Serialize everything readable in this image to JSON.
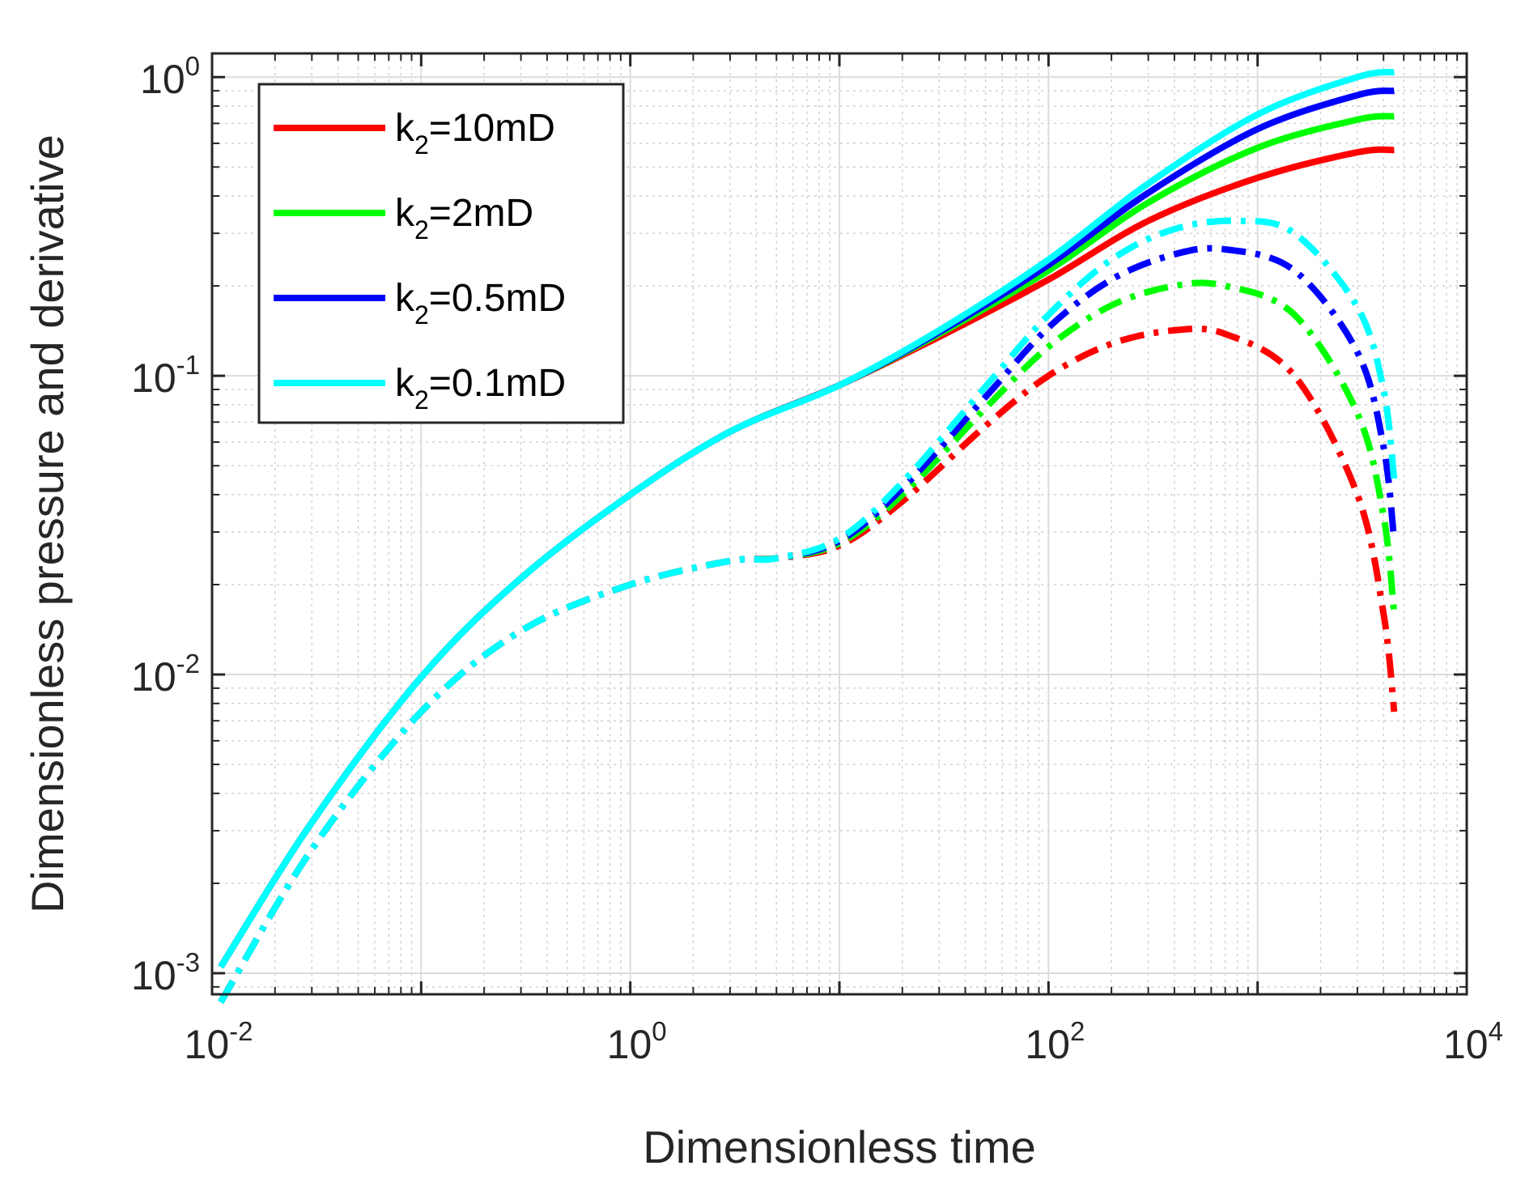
{
  "chart_data": {
    "type": "line",
    "xscale": "log",
    "yscale": "log",
    "xlabel": "Dimensionless time",
    "ylabel": "Dimensionless pressure and derivative",
    "xlim": [
      0.01,
      10000
    ],
    "ylim": [
      0.00085,
      1.2
    ],
    "x_ticks": [
      {
        "value": 0.01,
        "base": "10",
        "exp": "-2"
      },
      {
        "value": 1,
        "base": "10",
        "exp": "0"
      },
      {
        "value": 100,
        "base": "10",
        "exp": "2"
      },
      {
        "value": 10000,
        "base": "10",
        "exp": "4"
      }
    ],
    "y_ticks": [
      {
        "value": 0.001,
        "base": "10",
        "exp": "-3"
      },
      {
        "value": 0.01,
        "base": "10",
        "exp": "-2"
      },
      {
        "value": 0.1,
        "base": "10",
        "exp": "-1"
      },
      {
        "value": 1,
        "base": "10",
        "exp": "0"
      }
    ],
    "grid": true,
    "legend_position": "top-left",
    "series": [
      {
        "name": "k2=10mD",
        "legend_main": "k",
        "legend_sub": "2",
        "legend_rest": "=10mD",
        "color": "#ff0000",
        "pressure": {
          "x": [
            0.011,
            0.03,
            0.1,
            0.3,
            1,
            3,
            10,
            30,
            100,
            300,
            1000,
            3000,
            4500
          ],
          "y": [
            0.00105,
            0.0032,
            0.0098,
            0.021,
            0.04,
            0.065,
            0.093,
            0.135,
            0.21,
            0.33,
            0.46,
            0.56,
            0.57
          ]
        },
        "derivative": {
          "x": [
            0.011,
            0.03,
            0.1,
            0.3,
            1,
            3,
            5,
            10,
            20,
            50,
            100,
            200,
            400,
            700,
            1500,
            3000,
            4000,
            4500
          ],
          "y": [
            0.0008,
            0.0026,
            0.0075,
            0.014,
            0.02,
            0.024,
            0.0245,
            0.027,
            0.038,
            0.068,
            0.1,
            0.128,
            0.142,
            0.138,
            0.1,
            0.04,
            0.016,
            0.0075
          ]
        }
      },
      {
        "name": "k2=2mD",
        "legend_main": "k",
        "legend_sub": "2",
        "legend_rest": "=2mD",
        "color": "#00ff00",
        "pressure": {
          "x": [
            0.011,
            0.03,
            0.1,
            0.3,
            1,
            3,
            10,
            30,
            100,
            300,
            1000,
            3000,
            4500
          ],
          "y": [
            0.00105,
            0.0032,
            0.0098,
            0.021,
            0.04,
            0.065,
            0.093,
            0.138,
            0.225,
            0.38,
            0.58,
            0.72,
            0.74
          ]
        },
        "derivative": {
          "x": [
            0.011,
            0.03,
            0.1,
            0.3,
            1,
            3,
            5,
            10,
            20,
            50,
            100,
            200,
            400,
            700,
            1500,
            3000,
            4000,
            4500
          ],
          "y": [
            0.0008,
            0.0026,
            0.0075,
            0.014,
            0.02,
            0.024,
            0.0245,
            0.0275,
            0.04,
            0.078,
            0.125,
            0.172,
            0.2,
            0.2,
            0.16,
            0.075,
            0.034,
            0.016
          ]
        }
      },
      {
        "name": "k2=0.5mD",
        "legend_main": "k",
        "legend_sub": "2",
        "legend_rest": "=0.5mD",
        "color": "#0000ff",
        "pressure": {
          "x": [
            0.011,
            0.03,
            0.1,
            0.3,
            1,
            3,
            10,
            30,
            100,
            300,
            1000,
            3000,
            4500
          ],
          "y": [
            0.00105,
            0.0032,
            0.0098,
            0.021,
            0.04,
            0.065,
            0.093,
            0.14,
            0.235,
            0.41,
            0.67,
            0.87,
            0.9
          ]
        },
        "derivative": {
          "x": [
            0.011,
            0.03,
            0.1,
            0.3,
            1,
            3,
            5,
            10,
            20,
            50,
            100,
            200,
            400,
            700,
            1500,
            3000,
            4000,
            4500
          ],
          "y": [
            0.0008,
            0.0026,
            0.0075,
            0.014,
            0.02,
            0.024,
            0.0245,
            0.028,
            0.042,
            0.085,
            0.145,
            0.21,
            0.255,
            0.265,
            0.225,
            0.12,
            0.058,
            0.028
          ]
        }
      },
      {
        "name": "k2=0.1mD",
        "legend_main": "k",
        "legend_sub": "2",
        "legend_rest": "=0.1mD",
        "color": "#00ffff",
        "pressure": {
          "x": [
            0.011,
            0.03,
            0.1,
            0.3,
            1,
            3,
            10,
            30,
            100,
            300,
            1000,
            3000,
            4500
          ],
          "y": [
            0.00105,
            0.0032,
            0.0098,
            0.021,
            0.04,
            0.065,
            0.093,
            0.142,
            0.245,
            0.44,
            0.75,
            1.0,
            1.04
          ]
        },
        "derivative": {
          "x": [
            0.011,
            0.03,
            0.1,
            0.3,
            1,
            3,
            5,
            10,
            20,
            50,
            100,
            200,
            400,
            800,
            1500,
            3000,
            4000,
            4500
          ],
          "y": [
            0.0008,
            0.0026,
            0.0075,
            0.014,
            0.02,
            0.024,
            0.0245,
            0.0285,
            0.044,
            0.092,
            0.16,
            0.245,
            0.31,
            0.33,
            0.3,
            0.17,
            0.09,
            0.045
          ]
        }
      }
    ]
  }
}
